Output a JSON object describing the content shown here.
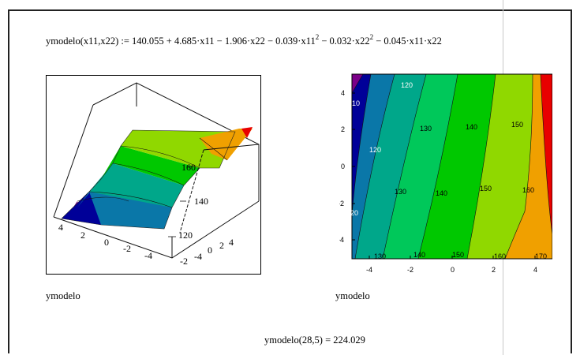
{
  "worksheet": {
    "formula": {
      "lhs": "ymodelo(x11,x22)",
      "assign": ":=",
      "t0": "140.055",
      "t1": "+ 4.685·x11",
      "t2": "− 1.906·x22",
      "t3": "− 0.039·x11",
      "t4": "− 0.032·x22",
      "t5": "− 0.045·x11·x22",
      "exp": "2"
    },
    "plot3d": {
      "name": "ymodelo",
      "z_labels": [
        "160",
        "140",
        "120"
      ],
      "x_labels": [
        "4",
        "2",
        "0",
        "-2",
        "-4"
      ],
      "y_labels": [
        "-2",
        "-4",
        "0",
        "2",
        "4"
      ]
    },
    "contour": {
      "name": "ymodelo",
      "x_ticks": [
        "-4",
        "-2",
        "0",
        "2",
        "4"
      ],
      "y_ticks": [
        "4",
        "2",
        "0",
        "-2",
        "-4"
      ],
      "contour_labels": [
        {
          "text": "120"
        },
        {
          "text": "10"
        },
        {
          "text": "130"
        },
        {
          "text": "140"
        },
        {
          "text": "150"
        },
        {
          "text": "120"
        },
        {
          "text": "130"
        },
        {
          "text": "140"
        },
        {
          "text": "150"
        },
        {
          "text": "160"
        },
        {
          "text": "20"
        },
        {
          "text": "130"
        },
        {
          "text": "140"
        },
        {
          "text": "150"
        },
        {
          "text": "160"
        },
        {
          "text": "170"
        }
      ],
      "colors": [
        "#7b0089",
        "#000098",
        "#0a77a8",
        "#00a78a",
        "#00c85a",
        "#00c800",
        "#90d800",
        "#f0a000",
        "#e80000"
      ]
    },
    "result": {
      "expression": "ymodelo(28,5)",
      "equals": "=",
      "value": "224.029"
    }
  }
}
